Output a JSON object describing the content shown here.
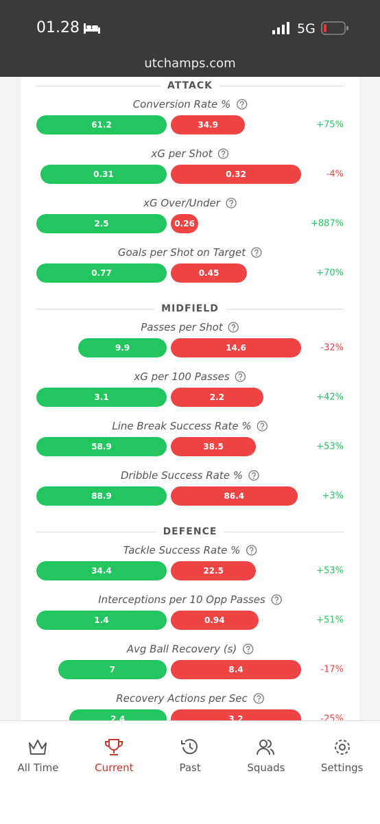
{
  "status_bar": {
    "time": "01.28",
    "network": "5G"
  },
  "url": "utchamps.com",
  "colors": {
    "better": "#22c55e",
    "worse": "#ef4444"
  },
  "sections": [
    {
      "title": "ATTACK",
      "metrics": [
        {
          "label": "Conversion Rate %",
          "values": [
            61.2,
            34.9
          ],
          "change": "+75%"
        },
        {
          "label": "xG per Shot",
          "values": [
            0.31,
            0.32
          ],
          "change": "-4%"
        },
        {
          "label": "xG Over/Under",
          "values": [
            2.5,
            0.26
          ],
          "change": "+887%"
        },
        {
          "label": "Goals per Shot on Target",
          "values": [
            0.77,
            0.45
          ],
          "change": "+70%"
        }
      ]
    },
    {
      "title": "MIDFIELD",
      "metrics": [
        {
          "label": "Passes per Shot",
          "values": [
            9.9,
            14.6
          ],
          "change": "-32%"
        },
        {
          "label": "xG per 100 Passes",
          "values": [
            3.1,
            2.2
          ],
          "change": "+42%"
        },
        {
          "label": "Line Break Success Rate %",
          "values": [
            58.9,
            38.5
          ],
          "change": "+53%"
        },
        {
          "label": "Dribble Success Rate %",
          "values": [
            88.9,
            86.4
          ],
          "change": "+3%"
        }
      ]
    },
    {
      "title": "DEFENCE",
      "metrics": [
        {
          "label": "Tackle Success Rate %",
          "values": [
            34.4,
            22.5
          ],
          "change": "+53%"
        },
        {
          "label": "Interceptions per 10 Opp Passes",
          "values": [
            1.4,
            0.94
          ],
          "change": "+51%"
        },
        {
          "label": "Avg Ball Recovery (s)",
          "values": [
            7,
            8.4
          ],
          "change": "-17%"
        },
        {
          "label": "Recovery Actions per Sec",
          "values": [
            2.4,
            3.2
          ],
          "change": "-25%"
        }
      ]
    }
  ],
  "nav": {
    "items": [
      "All Time",
      "Current",
      "Past",
      "Squads",
      "Settings"
    ],
    "active": 1
  }
}
